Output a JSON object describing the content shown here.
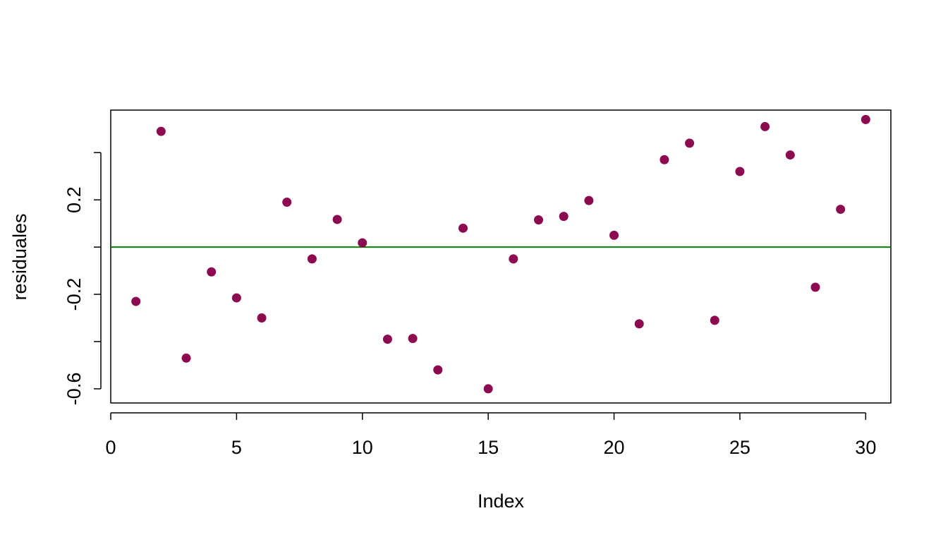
{
  "chart_data": {
    "type": "scatter",
    "xlabel": "Index",
    "ylabel": "residuales",
    "xlim": [
      0,
      31
    ],
    "ylim": [
      -0.66,
      0.58
    ],
    "x_ticks": [
      0,
      5,
      10,
      15,
      20,
      25,
      30
    ],
    "y_ticks": [
      -0.6,
      -0.2,
      0.2
    ],
    "y_tick_labels": [
      "-0.6",
      "-0.2",
      "0.2"
    ],
    "y_minor_ticks": [
      -0.4,
      0.0,
      0.4
    ],
    "grid": false,
    "point_color": "#8B0A50",
    "reference_line": {
      "y": 0,
      "color": "#008000"
    },
    "series": [
      {
        "x": [
          1,
          2,
          3,
          4,
          5,
          6,
          7,
          8,
          9,
          10,
          11,
          12,
          13,
          14,
          15,
          16,
          17,
          18,
          19,
          20,
          21,
          22,
          23,
          24,
          25,
          26,
          27,
          28,
          29,
          30
        ],
        "values": [
          -0.23,
          0.49,
          -0.47,
          -0.105,
          -0.215,
          -0.3,
          0.19,
          -0.05,
          0.117,
          0.018,
          -0.39,
          -0.387,
          -0.52,
          0.08,
          -0.6,
          -0.05,
          0.115,
          0.13,
          0.197,
          0.05,
          -0.325,
          0.37,
          0.44,
          -0.31,
          0.32,
          0.51,
          0.39,
          -0.17,
          0.16,
          0.54
        ]
      }
    ]
  }
}
